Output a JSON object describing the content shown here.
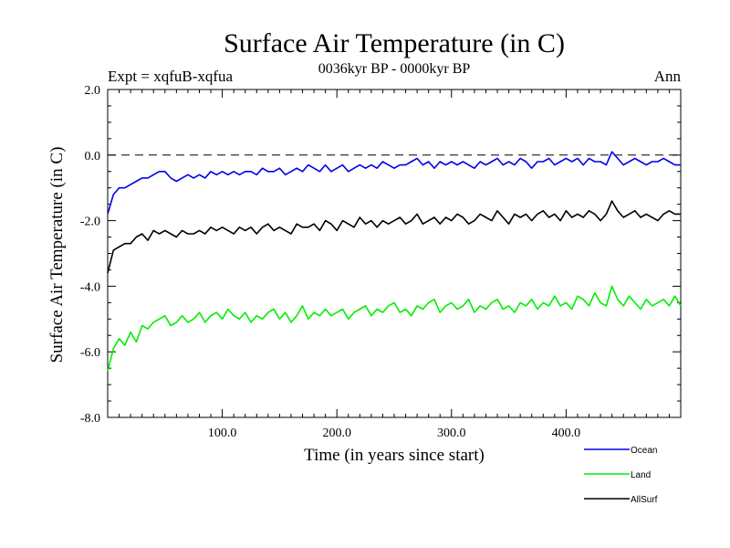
{
  "chart_data": {
    "type": "line",
    "title": "Surface Air Temperature (in C)",
    "subtitle": "0036kyr BP - 0000kyr BP",
    "left_label": "Expt = xqfuB-xqfua",
    "right_label": "Ann",
    "xlabel": "Time (in years since start)",
    "ylabel": "Surface Air Temperature (in C)",
    "xlim": [
      0,
      500
    ],
    "ylim": [
      -8.0,
      2.0
    ],
    "x_ticks": [
      100,
      200,
      300,
      400
    ],
    "x_tick_labels": [
      "100.0",
      "200.0",
      "300.0",
      "400.0"
    ],
    "y_ticks": [
      2,
      0,
      -2,
      -4,
      -6,
      -8
    ],
    "y_tick_labels": [
      "2.0",
      "0.0",
      "-2.0",
      "-4.0",
      "-6.0",
      "-8.0"
    ],
    "reference_line": 0.0,
    "legend_position": "bottom-right",
    "series": [
      {
        "name": "Ocean",
        "color": "#0000ee",
        "x": [
          0,
          5,
          10,
          15,
          20,
          25,
          30,
          35,
          40,
          45,
          50,
          55,
          60,
          65,
          70,
          75,
          80,
          85,
          90,
          95,
          100,
          105,
          110,
          115,
          120,
          125,
          130,
          135,
          140,
          145,
          150,
          155,
          160,
          165,
          170,
          175,
          180,
          185,
          190,
          195,
          200,
          205,
          210,
          215,
          220,
          225,
          230,
          235,
          240,
          245,
          250,
          255,
          260,
          265,
          270,
          275,
          280,
          285,
          290,
          295,
          300,
          305,
          310,
          315,
          320,
          325,
          330,
          335,
          340,
          345,
          350,
          355,
          360,
          365,
          370,
          375,
          380,
          385,
          390,
          395,
          400,
          405,
          410,
          415,
          420,
          425,
          430,
          435,
          440,
          445,
          450,
          455,
          460,
          465,
          470,
          475,
          480,
          485,
          490,
          495,
          500
        ],
        "values": [
          -1.8,
          -1.2,
          -1.0,
          -1.0,
          -0.9,
          -0.8,
          -0.7,
          -0.7,
          -0.6,
          -0.5,
          -0.5,
          -0.7,
          -0.8,
          -0.7,
          -0.6,
          -0.7,
          -0.6,
          -0.7,
          -0.5,
          -0.6,
          -0.5,
          -0.6,
          -0.5,
          -0.6,
          -0.5,
          -0.5,
          -0.6,
          -0.4,
          -0.5,
          -0.5,
          -0.4,
          -0.6,
          -0.5,
          -0.4,
          -0.5,
          -0.3,
          -0.4,
          -0.5,
          -0.3,
          -0.5,
          -0.4,
          -0.3,
          -0.5,
          -0.4,
          -0.3,
          -0.4,
          -0.3,
          -0.4,
          -0.2,
          -0.3,
          -0.4,
          -0.3,
          -0.3,
          -0.2,
          -0.1,
          -0.3,
          -0.2,
          -0.4,
          -0.2,
          -0.3,
          -0.2,
          -0.3,
          -0.2,
          -0.3,
          -0.4,
          -0.2,
          -0.3,
          -0.2,
          -0.1,
          -0.3,
          -0.2,
          -0.3,
          -0.1,
          -0.2,
          -0.4,
          -0.2,
          -0.2,
          -0.1,
          -0.3,
          -0.2,
          -0.1,
          -0.2,
          -0.1,
          -0.3,
          -0.1,
          -0.2,
          -0.2,
          -0.3,
          0.1,
          -0.1,
          -0.3,
          -0.2,
          -0.1,
          -0.2,
          -0.3,
          -0.2,
          -0.2,
          -0.1,
          -0.2,
          -0.3,
          -0.3
        ]
      },
      {
        "name": "Land",
        "color": "#00ee00",
        "x": [
          0,
          5,
          10,
          15,
          20,
          25,
          30,
          35,
          40,
          45,
          50,
          55,
          60,
          65,
          70,
          75,
          80,
          85,
          90,
          95,
          100,
          105,
          110,
          115,
          120,
          125,
          130,
          135,
          140,
          145,
          150,
          155,
          160,
          165,
          170,
          175,
          180,
          185,
          190,
          195,
          200,
          205,
          210,
          215,
          220,
          225,
          230,
          235,
          240,
          245,
          250,
          255,
          260,
          265,
          270,
          275,
          280,
          285,
          290,
          295,
          300,
          305,
          310,
          315,
          320,
          325,
          330,
          335,
          340,
          345,
          350,
          355,
          360,
          365,
          370,
          375,
          380,
          385,
          390,
          395,
          400,
          405,
          410,
          415,
          420,
          425,
          430,
          435,
          440,
          445,
          450,
          455,
          460,
          465,
          470,
          475,
          480,
          485,
          490,
          495,
          500
        ],
        "values": [
          -6.6,
          -5.9,
          -5.6,
          -5.8,
          -5.4,
          -5.7,
          -5.2,
          -5.3,
          -5.1,
          -5.0,
          -4.9,
          -5.2,
          -5.1,
          -4.9,
          -5.1,
          -5.0,
          -4.8,
          -5.1,
          -4.9,
          -4.8,
          -5.0,
          -4.7,
          -4.9,
          -5.0,
          -4.8,
          -5.1,
          -4.9,
          -5.0,
          -4.8,
          -4.7,
          -5.0,
          -4.8,
          -5.1,
          -4.9,
          -4.6,
          -5.0,
          -4.8,
          -4.9,
          -4.7,
          -4.9,
          -4.8,
          -4.7,
          -5.0,
          -4.8,
          -4.7,
          -4.6,
          -4.9,
          -4.7,
          -4.8,
          -4.6,
          -4.5,
          -4.8,
          -4.7,
          -4.9,
          -4.6,
          -4.7,
          -4.5,
          -4.4,
          -4.8,
          -4.6,
          -4.5,
          -4.7,
          -4.6,
          -4.4,
          -4.8,
          -4.6,
          -4.7,
          -4.5,
          -4.4,
          -4.7,
          -4.6,
          -4.8,
          -4.5,
          -4.6,
          -4.4,
          -4.7,
          -4.5,
          -4.6,
          -4.3,
          -4.6,
          -4.5,
          -4.7,
          -4.3,
          -4.4,
          -4.6,
          -4.2,
          -4.5,
          -4.6,
          -4.0,
          -4.4,
          -4.6,
          -4.3,
          -4.5,
          -4.7,
          -4.4,
          -4.6,
          -4.5,
          -4.4,
          -4.6,
          -4.3,
          -4.6
        ]
      },
      {
        "name": "AllSurf",
        "color": "#000000",
        "x": [
          0,
          5,
          10,
          15,
          20,
          25,
          30,
          35,
          40,
          45,
          50,
          55,
          60,
          65,
          70,
          75,
          80,
          85,
          90,
          95,
          100,
          105,
          110,
          115,
          120,
          125,
          130,
          135,
          140,
          145,
          150,
          155,
          160,
          165,
          170,
          175,
          180,
          185,
          190,
          195,
          200,
          205,
          210,
          215,
          220,
          225,
          230,
          235,
          240,
          245,
          250,
          255,
          260,
          265,
          270,
          275,
          280,
          285,
          290,
          295,
          300,
          305,
          310,
          315,
          320,
          325,
          330,
          335,
          340,
          345,
          350,
          355,
          360,
          365,
          370,
          375,
          380,
          385,
          390,
          395,
          400,
          405,
          410,
          415,
          420,
          425,
          430,
          435,
          440,
          445,
          450,
          455,
          460,
          465,
          470,
          475,
          480,
          485,
          490,
          495,
          500
        ],
        "values": [
          -3.6,
          -2.9,
          -2.8,
          -2.7,
          -2.7,
          -2.5,
          -2.4,
          -2.6,
          -2.3,
          -2.4,
          -2.3,
          -2.4,
          -2.5,
          -2.3,
          -2.4,
          -2.4,
          -2.3,
          -2.4,
          -2.2,
          -2.3,
          -2.2,
          -2.3,
          -2.4,
          -2.2,
          -2.3,
          -2.2,
          -2.4,
          -2.2,
          -2.1,
          -2.3,
          -2.2,
          -2.3,
          -2.4,
          -2.1,
          -2.2,
          -2.2,
          -2.1,
          -2.3,
          -2.0,
          -2.1,
          -2.3,
          -2.0,
          -2.1,
          -2.2,
          -1.9,
          -2.1,
          -2.0,
          -2.2,
          -2.0,
          -2.1,
          -2.0,
          -1.9,
          -2.1,
          -2.0,
          -1.8,
          -2.1,
          -2.0,
          -1.9,
          -2.1,
          -1.9,
          -2.0,
          -1.8,
          -1.9,
          -2.1,
          -2.0,
          -1.8,
          -1.9,
          -2.0,
          -1.7,
          -1.9,
          -2.1,
          -1.8,
          -1.9,
          -1.8,
          -2.0,
          -1.8,
          -1.7,
          -1.9,
          -1.8,
          -2.0,
          -1.7,
          -1.9,
          -1.8,
          -1.9,
          -1.7,
          -1.8,
          -2.0,
          -1.8,
          -1.4,
          -1.7,
          -1.9,
          -1.8,
          -1.7,
          -1.9,
          -1.8,
          -1.9,
          -2.0,
          -1.8,
          -1.7,
          -1.8,
          -1.8
        ]
      }
    ]
  }
}
